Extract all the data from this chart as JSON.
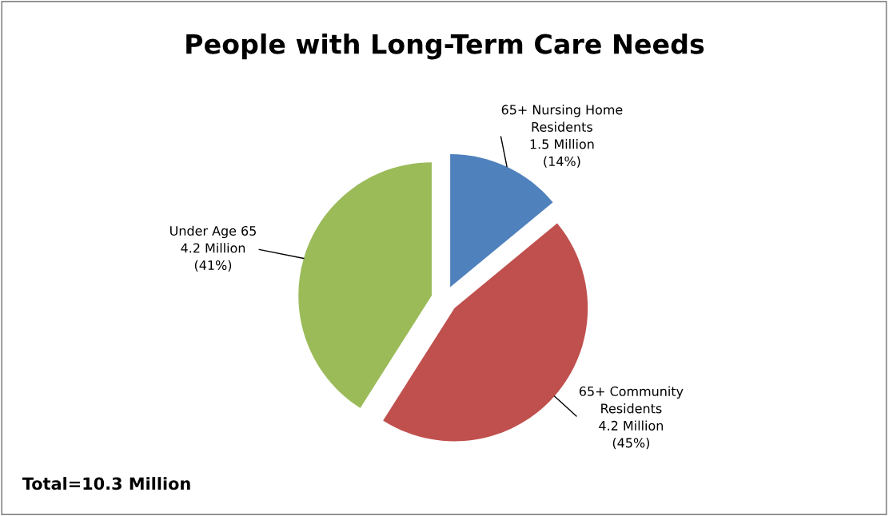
{
  "chart_data": {
    "type": "pie",
    "title": "People with Long-Term Care Needs",
    "categories": [
      "65+ Nursing Home\nResidents",
      "65+ Community\nResidents",
      "Under Age 65"
    ],
    "values": [
      14,
      45,
      41
    ],
    "value_labels": [
      "1.5 Million\n(14%)",
      "4.2 Million\n(45%)",
      "4.2 Million\n(41%)"
    ],
    "colors": [
      "#4f81bd",
      "#c0504d",
      "#9bbb59"
    ],
    "annotations": [
      "Total=10.3 Million"
    ],
    "legend": false
  }
}
